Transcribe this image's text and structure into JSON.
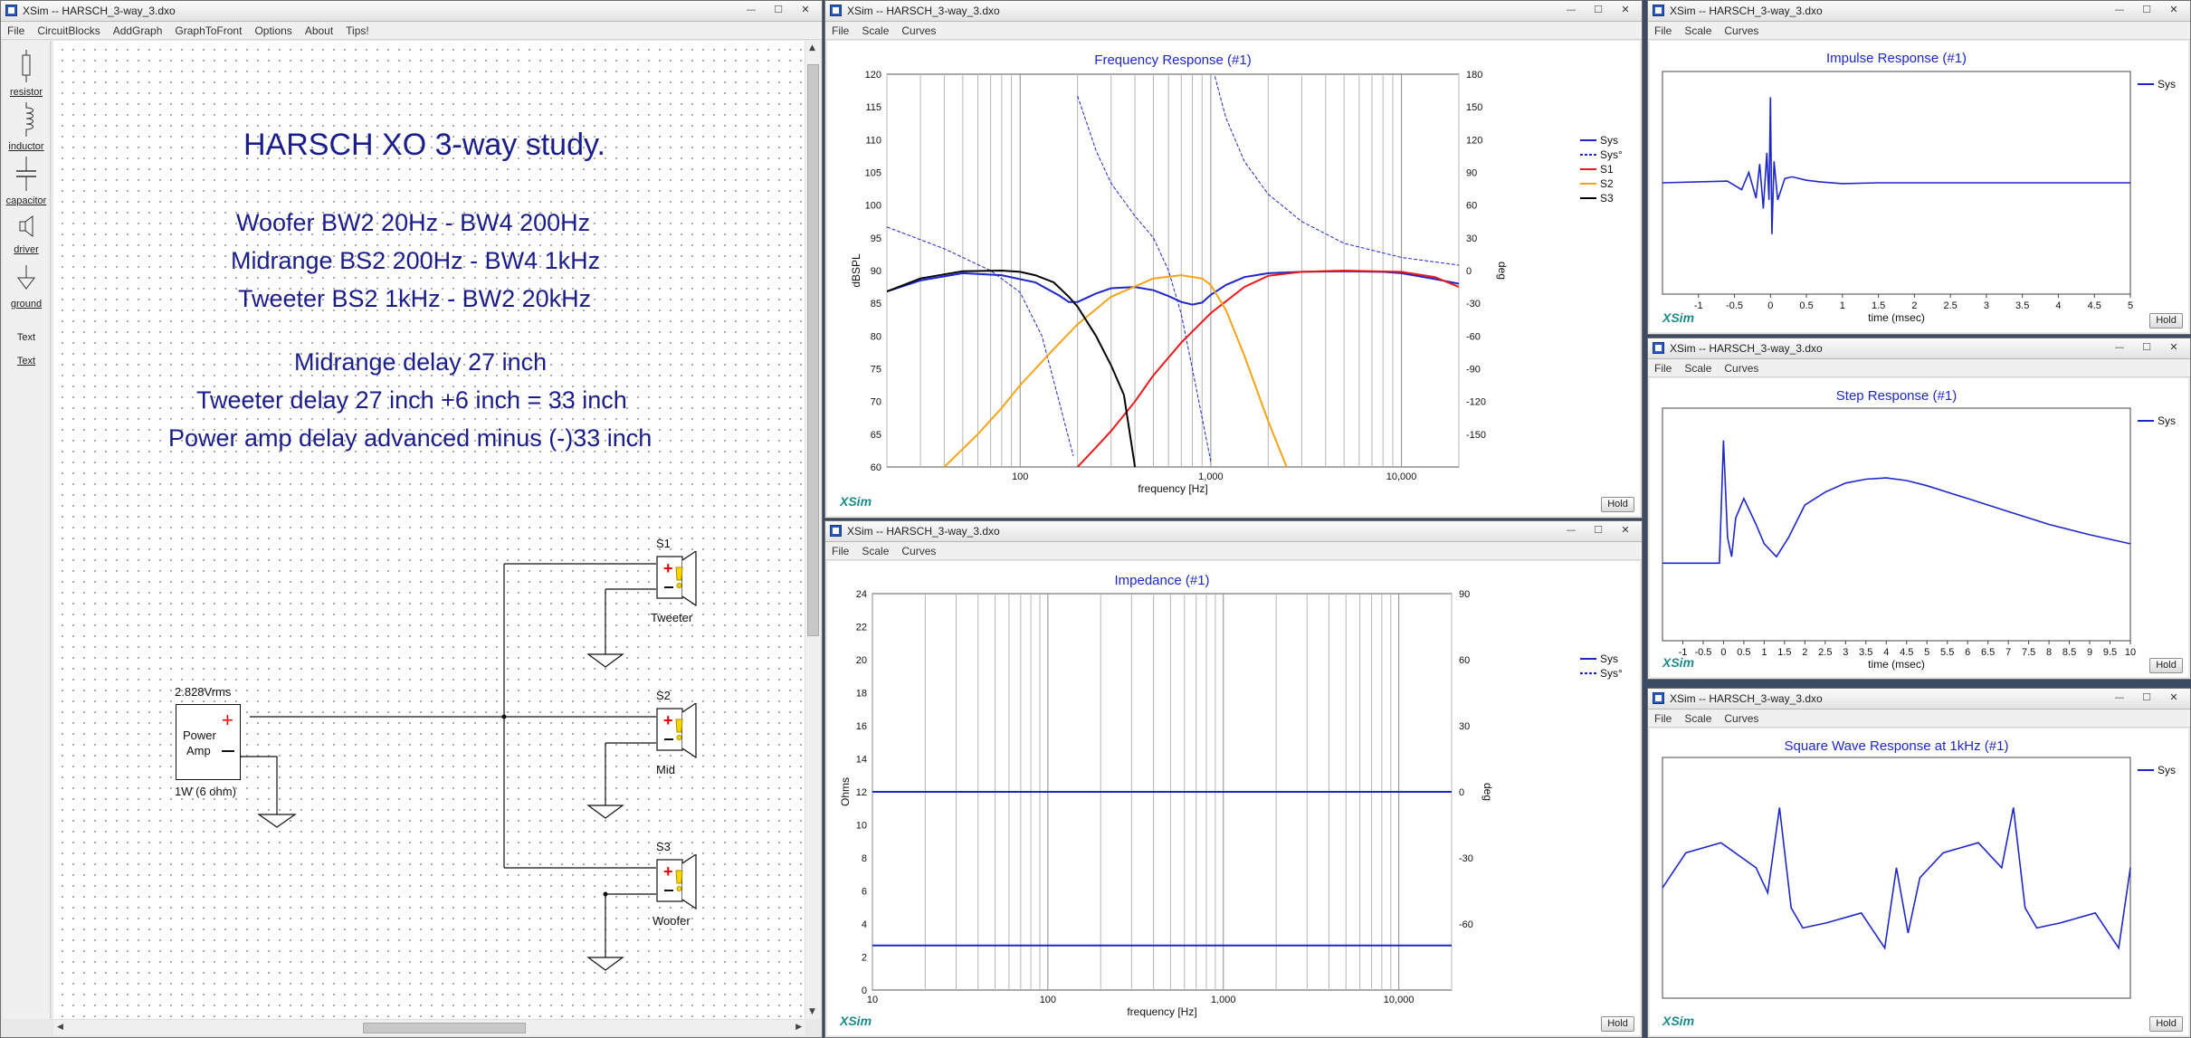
{
  "window_title": "XSim -- HARSCH_3-way_3.dxo",
  "window_buttons": {
    "minimize": "—",
    "maximize": "☐",
    "close": "✕"
  },
  "schematic": {
    "menu": [
      "File",
      "CircuitBlocks",
      "AddGraph",
      "GraphToFront",
      "Options",
      "About",
      "Tips!"
    ],
    "tools": [
      "resistor",
      "inductor",
      "capacitor",
      "driver",
      "ground",
      "Text",
      "Text"
    ],
    "notes": {
      "title": "HARSCH XO 3-way study.",
      "woofer": "Woofer BW2 20Hz - BW4 200Hz",
      "midrange": "Midrange BS2 200Hz - BW4 1kHz",
      "tweeter": "Tweeter BS2 1kHz - BW2 20kHz",
      "mid_delay": "Midrange delay 27 inch",
      "tweeter_delay": "Tweeter delay 27 inch +6 inch = 33 inch",
      "amp_delay": "Power amp delay advanced minus (-)33 inch"
    },
    "amp": {
      "voltage": "2.828Vrms",
      "label1": "Power",
      "label2": "Amp",
      "power": "1W (6 ohm)"
    },
    "drivers": [
      {
        "name": "S1",
        "label": "Tweeter"
      },
      {
        "name": "S2",
        "label": "Mid"
      },
      {
        "name": "S3",
        "label": "Woofer"
      }
    ]
  },
  "graph_menu": [
    "File",
    "Scale",
    "Curves"
  ],
  "hold_label": "Hold",
  "brand": "XSim",
  "colors": {
    "sys": "#1f27c9",
    "s1": "#e81919",
    "s2": "#f5a418",
    "s3": "#000000",
    "title": "#1f27c9"
  },
  "freq_response": {
    "title": "Frequency Response (#1)",
    "ylabel": "dBSPL",
    "y2label": "deg",
    "xlabel": "frequency [Hz]",
    "xticks": [
      "100",
      "1,000",
      "10,000"
    ],
    "yticks": [
      "120",
      "115",
      "110",
      "105",
      "100",
      "95",
      "90",
      "85",
      "80",
      "75",
      "70",
      "65",
      "60"
    ],
    "y2ticks": [
      "180",
      "150",
      "120",
      "90",
      "60",
      "30",
      "0",
      "-30",
      "-60",
      "-90",
      "-120",
      "-150"
    ],
    "legend": [
      "Sys",
      "Sys°",
      "S1",
      "S2",
      "S3"
    ]
  },
  "impedance": {
    "title": "Impedance (#1)",
    "ylabel": "Ohms",
    "y2label": "deg",
    "xlabel": "frequency [Hz]",
    "xticks": [
      "10",
      "100",
      "1,000",
      "10,000"
    ],
    "yticks": [
      "24",
      "22",
      "20",
      "18",
      "16",
      "14",
      "12",
      "10",
      "8",
      "6",
      "4",
      "2",
      "0"
    ],
    "y2ticks": [
      "90",
      "60",
      "30",
      "0",
      "-30",
      "-60"
    ],
    "legend": [
      "Sys",
      "Sys°"
    ]
  },
  "impulse": {
    "title": "Impulse Response (#1)",
    "xlabel": "time (msec)",
    "xticks": [
      "-1",
      "-0.5",
      "0",
      "0.5",
      "1",
      "1.5",
      "2",
      "2.5",
      "3",
      "3.5",
      "4",
      "4.5",
      "5"
    ],
    "legend": [
      "Sys"
    ]
  },
  "step": {
    "title": "Step Response (#1)",
    "xlabel": "time (msec)",
    "xticks": [
      "-1",
      "-0.5",
      "0",
      "0.5",
      "1",
      "1.5",
      "2",
      "2.5",
      "3",
      "3.5",
      "4",
      "4.5",
      "5",
      "5.5",
      "6",
      "6.5",
      "7",
      "7.5",
      "8",
      "8.5",
      "9",
      "9.5",
      "10"
    ],
    "legend": [
      "Sys"
    ]
  },
  "square": {
    "title": "Square Wave Response at 1kHz (#1)",
    "legend": [
      "Sys"
    ]
  },
  "chart_data": [
    {
      "type": "line",
      "title": "Frequency Response (#1)",
      "xlabel": "frequency [Hz]",
      "ylabel": "dBSPL",
      "y2label": "deg",
      "xscale": "log",
      "xlim": [
        20,
        20000
      ],
      "ylim": [
        60,
        120
      ],
      "y2lim": [
        -180,
        180
      ],
      "series": [
        {
          "name": "Sys",
          "x": [
            20,
            30,
            50,
            80,
            120,
            160,
            180,
            200,
            250,
            300,
            400,
            500,
            600,
            700,
            800,
            900,
            1000,
            1200,
            1500,
            2000,
            3000,
            5000,
            8000,
            10000,
            15000,
            20000
          ],
          "y": [
            86.8,
            88.5,
            89.6,
            89.3,
            88.2,
            86.2,
            85.2,
            85.2,
            86.5,
            87.3,
            87.5,
            87.0,
            86.1,
            85.2,
            84.8,
            85.1,
            86.3,
            87.8,
            89.0,
            89.6,
            89.8,
            89.9,
            89.8,
            89.6,
            88.7,
            88.0
          ]
        },
        {
          "name": "Sys°",
          "axis": "y2",
          "x": [
            20,
            40,
            70,
            100,
            130,
            160,
            190,
            200,
            250,
            300,
            400,
            500,
            600,
            700,
            800,
            1000,
            1050,
            1200,
            1500,
            2000,
            3000,
            5000,
            10000,
            20000
          ],
          "y": [
            40,
            20,
            0,
            -20,
            -60,
            -120,
            -170,
            160,
            110,
            80,
            50,
            30,
            0,
            -40,
            -90,
            -175,
            178,
            140,
            100,
            70,
            45,
            25,
            12,
            5
          ]
        },
        {
          "name": "S1",
          "x": [
            200,
            250,
            300,
            400,
            500,
            700,
            1000,
            1500,
            2000,
            3000,
            5000,
            10000,
            15000,
            20000
          ],
          "y": [
            60,
            63,
            65.5,
            70,
            74,
            79,
            83.5,
            87.5,
            89.2,
            89.8,
            90,
            89.8,
            89,
            87.5
          ]
        },
        {
          "name": "S2",
          "x": [
            40,
            60,
            80,
            100,
            150,
            200,
            300,
            500,
            700,
            900,
            1000,
            1200,
            1500,
            2000,
            2500
          ],
          "y": [
            60,
            65,
            69,
            72.5,
            78,
            81.8,
            86,
            88.8,
            89.3,
            88.8,
            87.8,
            84,
            77,
            67,
            60
          ]
        },
        {
          "name": "S3",
          "x": [
            20,
            30,
            50,
            80,
            100,
            120,
            150,
            180,
            200,
            250,
            300,
            350,
            400
          ],
          "y": [
            86.8,
            88.8,
            89.9,
            90,
            89.8,
            89.3,
            88.2,
            86,
            84.5,
            80,
            75.5,
            71,
            60
          ]
        }
      ]
    },
    {
      "type": "line",
      "title": "Impedance (#1)",
      "xlabel": "frequency [Hz]",
      "ylabel": "Ohms",
      "y2label": "deg",
      "xscale": "log",
      "xlim": [
        10,
        20000
      ],
      "ylim": [
        0,
        24
      ],
      "y2lim": [
        -90,
        90
      ],
      "series": [
        {
          "name": "Sys",
          "x": [
            10,
            20000
          ],
          "y": [
            2.7,
            2.7
          ]
        },
        {
          "name": "Sys°",
          "axis": "y2",
          "x": [
            10,
            20000
          ],
          "y": [
            0,
            0
          ]
        }
      ]
    },
    {
      "type": "line",
      "title": "Impulse Response (#1)",
      "xlabel": "time (msec)",
      "xlim": [
        -1.5,
        5
      ],
      "series": [
        {
          "name": "Sys",
          "x": [
            -1.5,
            -0.6,
            -0.4,
            -0.3,
            -0.2,
            -0.15,
            -0.1,
            -0.05,
            -0.02,
            0,
            0.02,
            0.05,
            0.1,
            0.2,
            0.3,
            0.5,
            0.7,
            1,
            1.5,
            2,
            3,
            5
          ],
          "y": [
            0,
            0.02,
            -0.08,
            0.12,
            -0.18,
            0.22,
            -0.3,
            0.35,
            -0.2,
            1.0,
            -0.6,
            0.25,
            -0.2,
            0.05,
            0.07,
            0.03,
            0.01,
            -0.01,
            0,
            0,
            0,
            0
          ]
        }
      ]
    },
    {
      "type": "line",
      "title": "Step Response (#1)",
      "xlabel": "time (msec)",
      "xlim": [
        -1.5,
        10
      ],
      "series": [
        {
          "name": "Sys",
          "x": [
            -1.5,
            -0.1,
            0,
            0.1,
            0.2,
            0.3,
            0.5,
            0.8,
            1,
            1.3,
            1.6,
            2,
            2.5,
            3,
            3.5,
            4,
            4.5,
            5,
            6,
            7,
            8,
            9,
            10
          ],
          "y": [
            0,
            0,
            0.95,
            0.2,
            0.05,
            0.35,
            0.5,
            0.3,
            0.15,
            0.05,
            0.2,
            0.45,
            0.55,
            0.62,
            0.65,
            0.66,
            0.64,
            0.6,
            0.5,
            0.4,
            0.3,
            0.22,
            0.15
          ]
        }
      ]
    },
    {
      "type": "line",
      "title": "Square Wave Response at 1kHz (#1)",
      "xlim": [
        0,
        2
      ],
      "series": [
        {
          "name": "Sys",
          "x": [
            0,
            0.1,
            0.25,
            0.4,
            0.45,
            0.5,
            0.55,
            0.6,
            0.7,
            0.85,
            0.95,
            1.0,
            1.05,
            1.1,
            1.2,
            1.35,
            1.45,
            1.5,
            1.55,
            1.6,
            1.7,
            1.85,
            1.95,
            2.0
          ],
          "y": [
            -0.1,
            0.25,
            0.35,
            0.1,
            -0.15,
            0.7,
            -0.3,
            -0.5,
            -0.45,
            -0.35,
            -0.7,
            0.1,
            -0.55,
            0.0,
            0.25,
            0.35,
            0.1,
            0.7,
            -0.3,
            -0.5,
            -0.45,
            -0.35,
            -0.7,
            0.1
          ]
        }
      ]
    }
  ]
}
